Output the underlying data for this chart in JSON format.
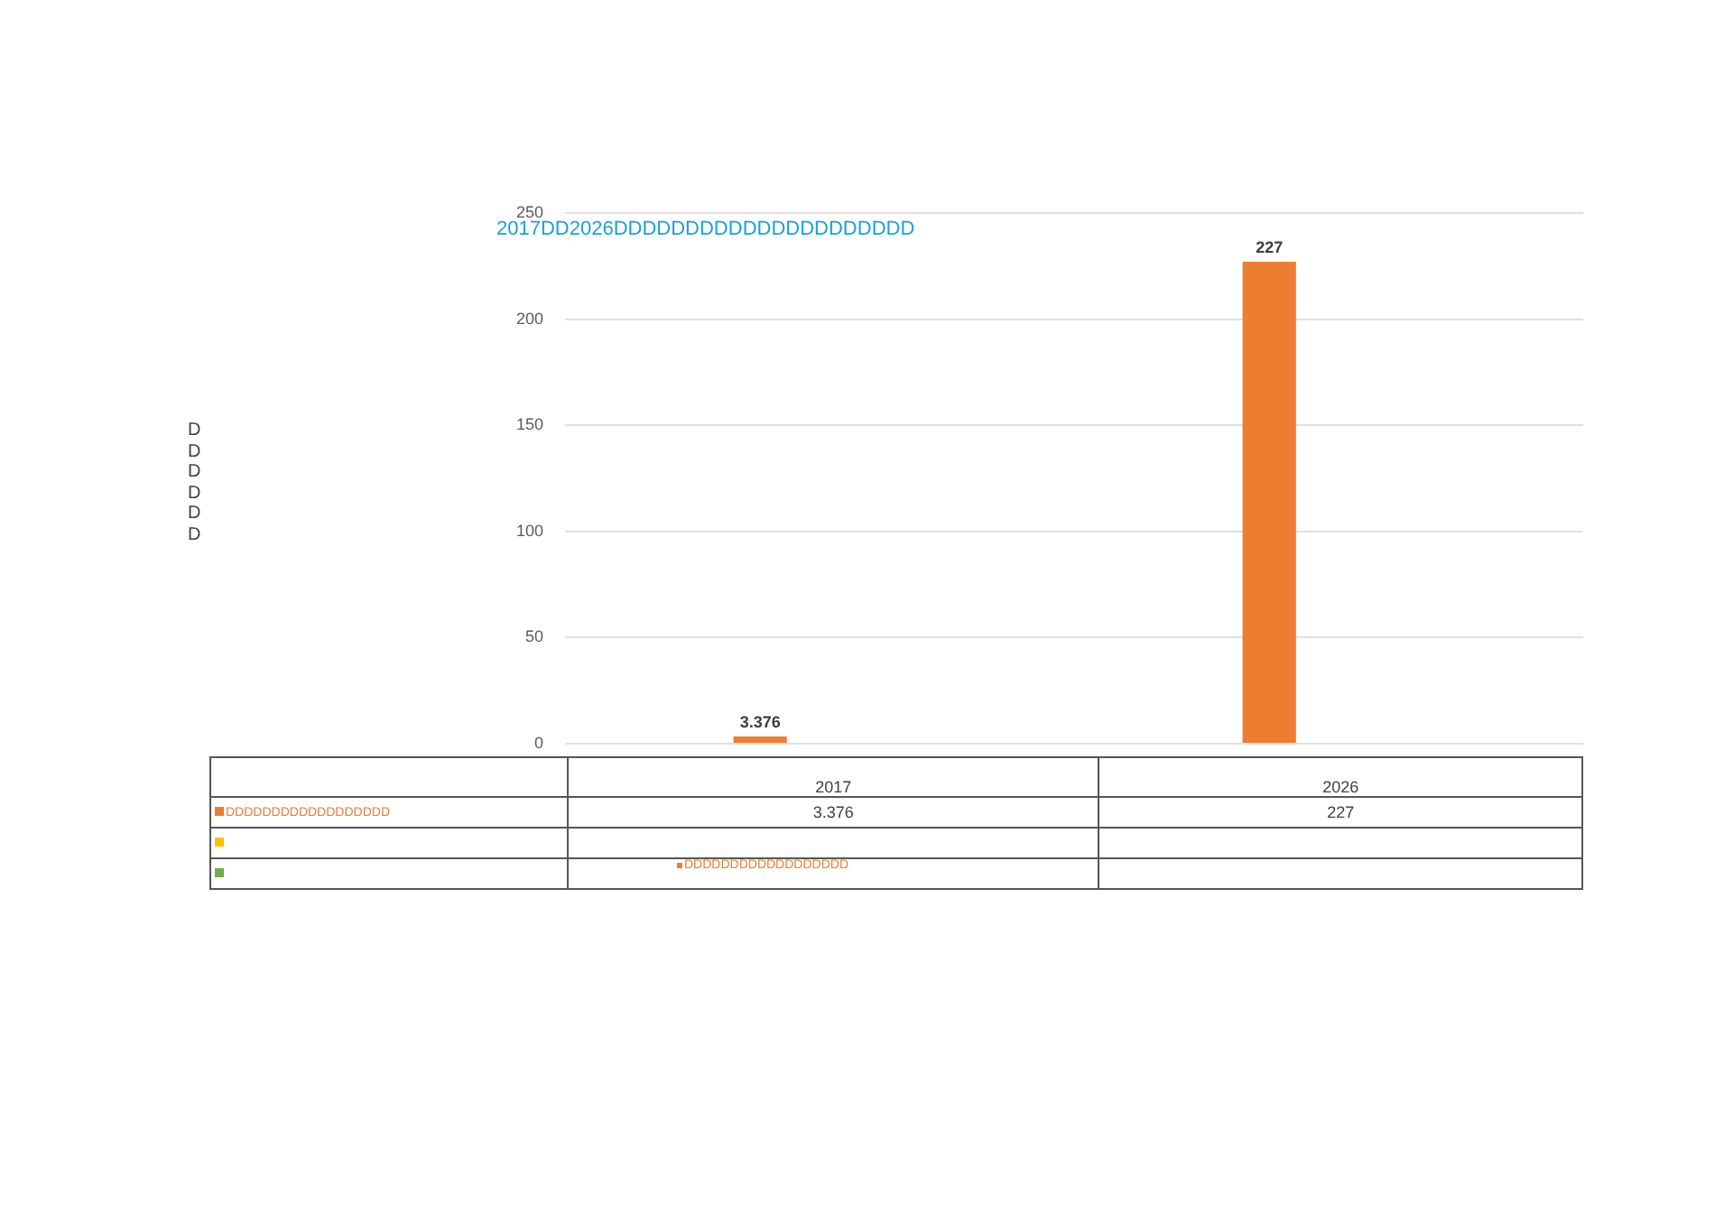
{
  "chart_data": {
    "type": "bar",
    "title": "2017DD2026DDDDDDDDDDDDDDDDDDDDD",
    "annotations": [
      "DDDDDD"
    ],
    "categories": [
      "2017",
      "2026"
    ],
    "series": [
      {
        "name": "DDDDDDDDDDDDDDDDDD",
        "color": "#ed7d31",
        "values": [
          3.376,
          227
        ],
        "value_labels": [
          "3.376",
          "227"
        ]
      },
      {
        "color": "#ffc000",
        "values": [
          null,
          null
        ]
      },
      {
        "color": "#70ad47",
        "values": [
          null,
          null
        ]
      }
    ],
    "ylim": [
      0,
      250
    ],
    "yticks": [
      0,
      50,
      100,
      150,
      200,
      250
    ],
    "grid": "y",
    "legend": "bottom"
  }
}
